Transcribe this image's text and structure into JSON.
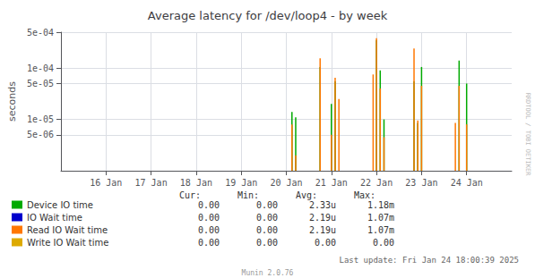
{
  "chart_data": {
    "type": "bar",
    "title": "Average latency for /dev/loop4 - by week",
    "y_label": "seconds",
    "log": "y",
    "grid": true,
    "legend": "bottom",
    "xlim": [
      1736899200,
      1737763200
    ],
    "xticks": [
      {
        "value": 1736985600,
        "label": "16 Jan"
      },
      {
        "value": 1737072000,
        "label": "17 Jan"
      },
      {
        "value": 1737158400,
        "label": "18 Jan"
      },
      {
        "value": 1737244800,
        "label": "19 Jan"
      },
      {
        "value": 1737331200,
        "label": "20 Jan"
      },
      {
        "value": 1737417600,
        "label": "21 Jan"
      },
      {
        "value": 1737504000,
        "label": "22 Jan"
      },
      {
        "value": 1737590400,
        "label": "23 Jan"
      },
      {
        "value": 1737676800,
        "label": "24 Jan"
      }
    ],
    "ylim": [
      1e-06,
      0.0005
    ],
    "yticks": [
      {
        "value": 5e-06,
        "label": "5e-06"
      },
      {
        "value": 1e-05,
        "label": "1e-05"
      },
      {
        "value": 5e-05,
        "label": "5e-05"
      },
      {
        "value": 0.0001,
        "label": "1e-04"
      },
      {
        "value": 0.0005,
        "label": "5e-04"
      }
    ],
    "series": [
      {
        "name": "Device IO time",
        "color": "#00aa00",
        "x": [
          1737342000,
          1737349200,
          1737396000,
          1737417600,
          1737424800,
          1737504000,
          1737511200,
          1737518400,
          1737576000,
          1737583200,
          1737590400,
          1737662400,
          1737676800
        ],
        "values": [
          1.4e-05,
          1.1e-05,
          0.000105,
          2e-05,
          5.5e-05,
          0.00035,
          9e-05,
          1e-05,
          5.5e-05,
          8.5e-06,
          0.000105,
          0.00014,
          5e-05
        ]
      },
      {
        "name": "IO Wait time",
        "color": "#0000cc",
        "x": [],
        "values": []
      },
      {
        "name": "Read IO Wait time",
        "color": "#ff7700",
        "x": [
          1737342000,
          1737349200,
          1737396000,
          1737417600,
          1737424800,
          1737432000,
          1737497600,
          1737504000,
          1737511200,
          1737518400,
          1737576000,
          1737583200,
          1737590400,
          1737655200,
          1737662400,
          1737676800
        ],
        "values": [
          8e-06,
          2e-06,
          0.000155,
          5e-06,
          6.5e-05,
          2.5e-05,
          7.5e-05,
          0.00038,
          4e-05,
          4.5e-06,
          0.00024,
          9.5e-06,
          4.5e-05,
          8.5e-06,
          4.5e-05,
          8e-06
        ]
      },
      {
        "name": "Write IO Wait time",
        "color": "#ddaa00",
        "x": [],
        "values": []
      }
    ],
    "table": {
      "headers": [
        "Cur:",
        "Min:",
        "Avg:",
        "Max:"
      ],
      "rows": [
        [
          "0.00",
          "0.00",
          "2.33u",
          "1.18m"
        ],
        [
          "0.00",
          "0.00",
          "2.19u",
          "1.07m"
        ],
        [
          "0.00",
          "0.00",
          "2.19u",
          "1.07m"
        ],
        [
          "0.00",
          "0.00",
          "0.00",
          "0.00"
        ]
      ]
    },
    "watermark": "RRDTOOL / TOBI OETIKER",
    "last_update": "Last update: Fri Jan 24 18:00:39 2025",
    "footer": "Munin 2.0.76"
  }
}
